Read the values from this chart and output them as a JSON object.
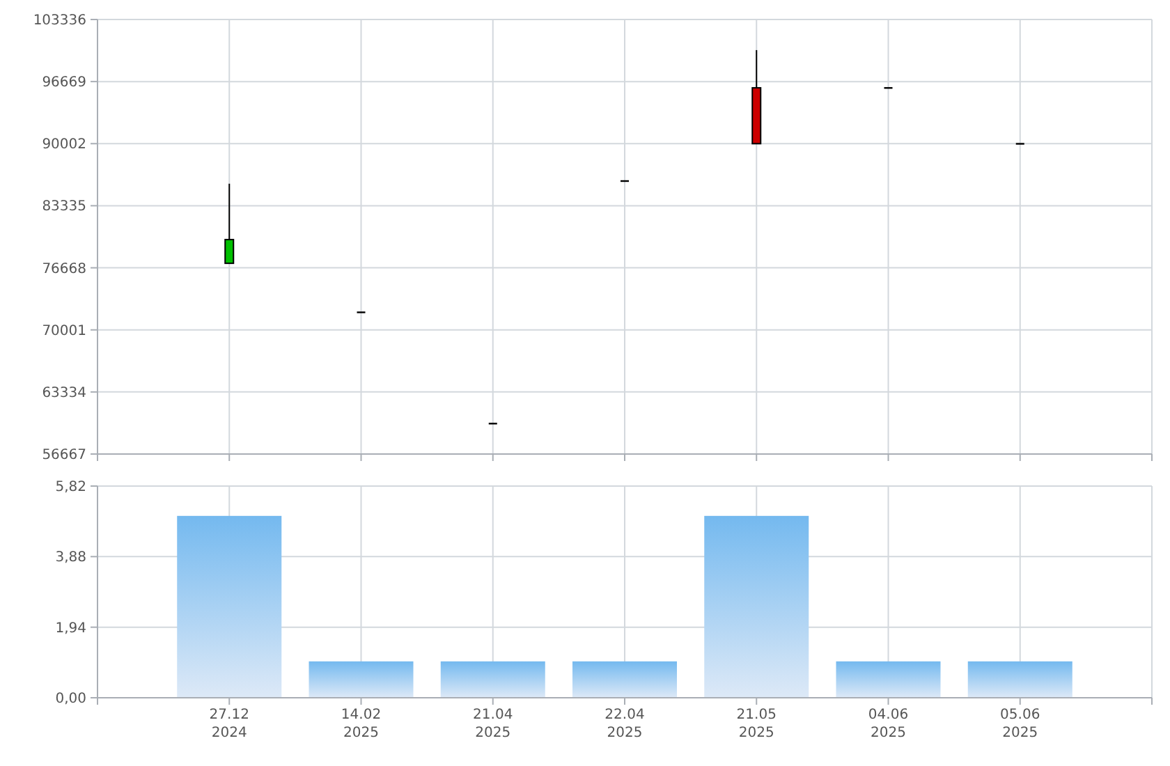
{
  "chart_data": [
    {
      "type": "candlestick",
      "categories": [
        null,
        null,
        null,
        null,
        null,
        null,
        null
      ],
      "ohlc": [
        [
          77150,
          85700,
          77150,
          79700
        ],
        [
          71900,
          71900,
          71900,
          71900
        ],
        [
          59950,
          59950,
          59950,
          59950
        ],
        [
          86000,
          86000,
          86000,
          86000
        ],
        [
          96000,
          100050,
          90000,
          90000
        ],
        [
          96000,
          96000,
          96000,
          96000
        ],
        [
          90000,
          90000,
          90000,
          90000
        ]
      ],
      "colors": [
        "#00c000",
        "#000000",
        "#000000",
        "#000000",
        "#cc0000",
        "#000000",
        "#000000"
      ],
      "ylim": [
        56667,
        103336
      ],
      "yticks": [
        56667,
        63334,
        70001,
        76668,
        83335,
        90002,
        96669,
        103336
      ],
      "grid": true,
      "tick_labels": "y"
    },
    {
      "type": "bar",
      "categories": [
        "27.12\n2024",
        "14.02\n2025",
        "21.04\n2025",
        "22.04\n2025",
        "21.05\n2025",
        "04.06\n2025",
        "05.06\n2025"
      ],
      "values": [
        5,
        1,
        1,
        1,
        5,
        1,
        1
      ],
      "color": "#74b9ef",
      "ylim": [
        0,
        5.82
      ],
      "yticks": [
        {
          "value": 0,
          "label": "0,00"
        },
        {
          "value": 1.94,
          "label": "1,94"
        },
        {
          "value": 3.88,
          "label": "3,88"
        },
        {
          "value": 5.82,
          "label": "5,82"
        }
      ],
      "grid": true
    }
  ]
}
